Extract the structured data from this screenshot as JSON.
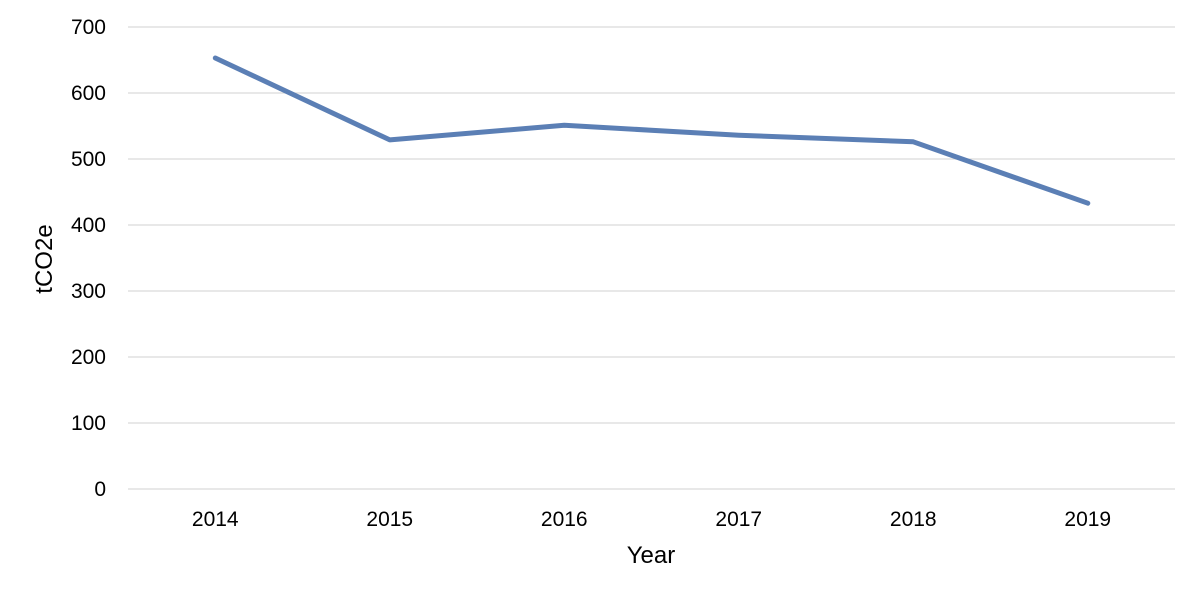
{
  "chart_data": {
    "type": "line",
    "title": "",
    "xlabel": "Year",
    "ylabel": "tCO2e",
    "categories": [
      "2014",
      "2015",
      "2016",
      "2017",
      "2018",
      "2019"
    ],
    "series": [
      {
        "values": [
          653,
          529,
          551,
          536,
          526,
          433
        ],
        "color": "#5b7fb5"
      }
    ],
    "ylim": [
      0,
      700
    ],
    "yticks": [
      0,
      100,
      200,
      300,
      400,
      500,
      600,
      700
    ],
    "grid": true,
    "gridColor": "#d9d9d9",
    "legend": "none"
  }
}
